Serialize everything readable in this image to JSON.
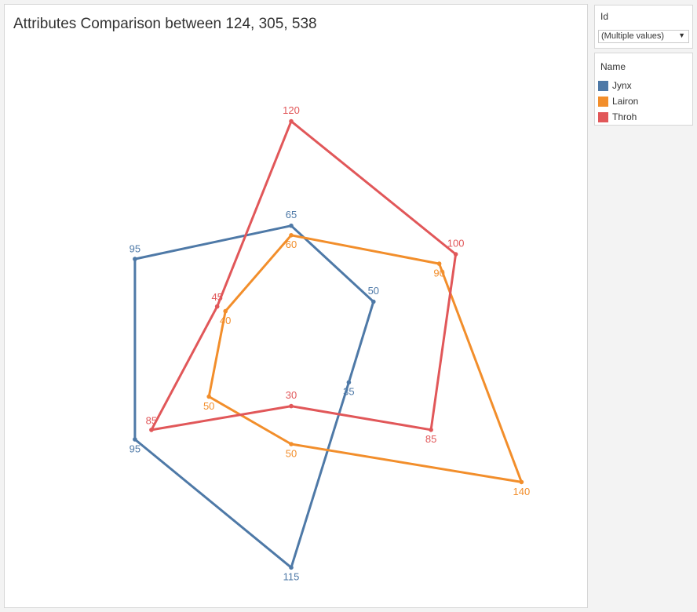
{
  "title": "Attributes Comparison between 124, 305, 538",
  "filter": {
    "label": "Id",
    "value": "(Multiple values)",
    "arrow_icon": "dropdown-arrow-icon"
  },
  "legend": {
    "title": "Name",
    "items": [
      {
        "label": "Jynx",
        "color": "#4e79a7"
      },
      {
        "label": "Lairon",
        "color": "#f28e2b"
      },
      {
        "label": "Throh",
        "color": "#e15759"
      }
    ]
  },
  "chart_data": {
    "type": "radar",
    "axes": 6,
    "grid": false,
    "legend_position": "right",
    "series": [
      {
        "name": "Jynx",
        "color": "#4e79a7",
        "values": [
          65,
          50,
          35,
          115,
          95,
          95
        ]
      },
      {
        "name": "Lairon",
        "color": "#f28e2b",
        "values": [
          60,
          90,
          140,
          50,
          50,
          40
        ]
      },
      {
        "name": "Throh",
        "color": "#e15759",
        "values": [
          120,
          100,
          85,
          30,
          85,
          45
        ]
      }
    ]
  }
}
